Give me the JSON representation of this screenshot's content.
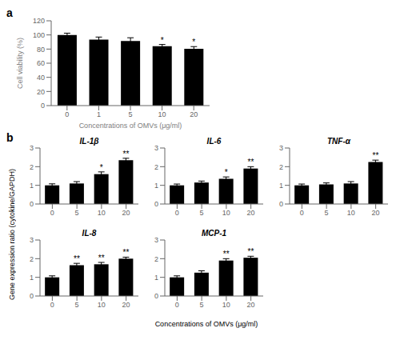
{
  "chart_data": [
    {
      "type": "bar",
      "categories": [
        "0",
        "1",
        "5",
        "10",
        "20"
      ],
      "values": [
        100.0,
        93.5,
        91.5,
        84.0,
        80.5
      ],
      "errors": [
        2.5,
        3.5,
        4.5,
        2.5,
        3.0
      ],
      "color": "#000000",
      "xlabel": "Concentrations of OMVs (μg/ml)",
      "ylabel": "Cell viability (%)",
      "ylim": [
        0,
        120
      ],
      "yticks": [
        0,
        20,
        40,
        60,
        80,
        100,
        120
      ],
      "annotations": [
        {
          "text": "a"
        },
        {
          "category": "10",
          "text": "*"
        },
        {
          "category": "20",
          "text": "*"
        }
      ]
    },
    {
      "type": "bar",
      "title": "IL-1β",
      "categories": [
        "0",
        "5",
        "10",
        "20"
      ],
      "values": [
        1.0,
        1.1,
        1.6,
        2.35
      ],
      "errors": [
        0.08,
        0.1,
        0.12,
        0.1
      ],
      "color": "#000000",
      "xlabel": "Concentrations of OMVs (μg/ml)",
      "ylabel": "Gene expression ratio (cytokine/GAPDH)",
      "ylim": [
        0,
        3
      ],
      "yticks": [
        0,
        1,
        2,
        3
      ],
      "annotations": [
        {
          "text": "b"
        },
        {
          "category": "10",
          "text": "*"
        },
        {
          "category": "20",
          "text": "**"
        }
      ]
    },
    {
      "type": "bar",
      "title": "IL-6",
      "categories": [
        "0",
        "5",
        "10",
        "20"
      ],
      "values": [
        1.0,
        1.15,
        1.35,
        1.9
      ],
      "errors": [
        0.07,
        0.08,
        0.1,
        0.1
      ],
      "color": "#000000",
      "ylim": [
        0,
        3
      ],
      "yticks": [
        0,
        1,
        2,
        3
      ],
      "annotations": [
        {
          "category": "10",
          "text": "*"
        },
        {
          "category": "20",
          "text": "**"
        }
      ]
    },
    {
      "type": "bar",
      "title": "TNF-α",
      "categories": [
        "0",
        "5",
        "10",
        "20"
      ],
      "values": [
        1.0,
        1.05,
        1.1,
        2.25
      ],
      "errors": [
        0.07,
        0.08,
        0.1,
        0.1
      ],
      "color": "#000000",
      "ylim": [
        0,
        3
      ],
      "yticks": [
        0,
        1,
        2,
        3
      ],
      "annotations": [
        {
          "category": "20",
          "text": "**"
        }
      ]
    },
    {
      "type": "bar",
      "title": "IL-8",
      "categories": [
        "0",
        "5",
        "10",
        "20"
      ],
      "values": [
        1.0,
        1.65,
        1.7,
        2.0
      ],
      "errors": [
        0.08,
        0.1,
        0.1,
        0.08
      ],
      "color": "#000000",
      "ylim": [
        0,
        3
      ],
      "yticks": [
        0,
        1,
        2,
        3
      ],
      "annotations": [
        {
          "category": "5",
          "text": "**"
        },
        {
          "category": "10",
          "text": "**"
        },
        {
          "category": "20",
          "text": "**"
        }
      ]
    },
    {
      "type": "bar",
      "title": "MCP-1",
      "categories": [
        "0",
        "5",
        "10",
        "20"
      ],
      "values": [
        1.0,
        1.25,
        1.9,
        2.05
      ],
      "errors": [
        0.08,
        0.1,
        0.1,
        0.08
      ],
      "color": "#000000",
      "ylim": [
        0,
        3
      ],
      "yticks": [
        0,
        1,
        2,
        3
      ],
      "annotations": [
        {
          "category": "10",
          "text": "**"
        },
        {
          "category": "20",
          "text": "**"
        }
      ]
    }
  ]
}
